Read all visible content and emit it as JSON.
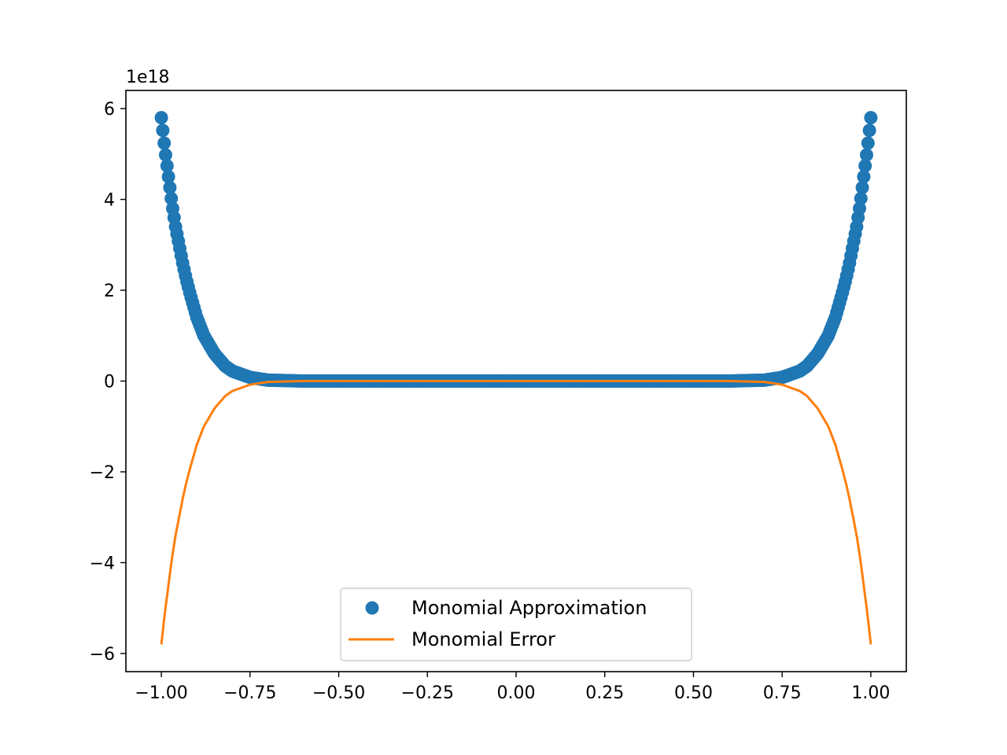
{
  "chart_data": {
    "type": "line",
    "title": "",
    "xlabel": "",
    "ylabel": "",
    "xlim": [
      -1.1,
      1.1
    ],
    "ylim": [
      -6.4,
      6.4
    ],
    "y_offset_label": "1e18",
    "x_ticks": [
      -1.0,
      -0.75,
      -0.5,
      -0.25,
      0.0,
      0.25,
      0.5,
      0.75,
      1.0
    ],
    "x_tick_labels": [
      "−1.00",
      "−0.75",
      "−0.50",
      "−0.25",
      "0.00",
      "0.25",
      "0.50",
      "0.75",
      "1.00"
    ],
    "y_ticks": [
      -6,
      -4,
      -2,
      0,
      2,
      4,
      6
    ],
    "y_tick_labels": [
      "−6",
      "−4",
      "−2",
      "0",
      "2",
      "4",
      "6"
    ],
    "grid": false,
    "legend_position": "lower-center",
    "series": [
      {
        "name": "Monomial Approximation",
        "style": "markers",
        "color": "#1f77b4",
        "x": [
          -1.0,
          -0.99,
          -0.98,
          -0.97,
          -0.96,
          -0.95,
          -0.94,
          -0.93,
          -0.92,
          -0.9,
          -0.88,
          -0.85,
          -0.82,
          -0.8,
          -0.75,
          -0.7,
          -0.6,
          -0.5,
          -0.4,
          -0.3,
          -0.2,
          -0.1,
          0.0,
          0.1,
          0.2,
          0.3,
          0.4,
          0.5,
          0.6,
          0.7,
          0.75,
          0.8,
          0.82,
          0.85,
          0.88,
          0.9,
          0.92,
          0.93,
          0.94,
          0.95,
          0.96,
          0.97,
          0.98,
          0.99,
          1.0
        ],
        "y": [
          5.8,
          5.1,
          4.5,
          3.9,
          3.4,
          3.0,
          2.6,
          2.25,
          1.95,
          1.4,
          1.0,
          0.6,
          0.33,
          0.22,
          0.08,
          0.02,
          0.0,
          0.0,
          0.0,
          0.0,
          0.0,
          0.0,
          0.0,
          0.0,
          0.0,
          0.0,
          0.0,
          0.0,
          0.0,
          0.02,
          0.08,
          0.22,
          0.33,
          0.6,
          1.0,
          1.4,
          1.95,
          2.25,
          2.6,
          3.0,
          3.4,
          3.9,
          4.5,
          5.1,
          5.8
        ]
      },
      {
        "name": "Monomial Error",
        "style": "line",
        "color": "#ff7f0e",
        "x": [
          -1.0,
          -0.99,
          -0.98,
          -0.97,
          -0.96,
          -0.95,
          -0.94,
          -0.93,
          -0.92,
          -0.9,
          -0.88,
          -0.85,
          -0.82,
          -0.8,
          -0.75,
          -0.7,
          -0.6,
          -0.5,
          -0.4,
          -0.3,
          -0.2,
          -0.1,
          0.0,
          0.1,
          0.2,
          0.3,
          0.4,
          0.5,
          0.6,
          0.7,
          0.75,
          0.8,
          0.82,
          0.85,
          0.88,
          0.9,
          0.92,
          0.93,
          0.94,
          0.95,
          0.96,
          0.97,
          0.98,
          0.99,
          1.0
        ],
        "y": [
          -5.8,
          -5.1,
          -4.5,
          -3.9,
          -3.4,
          -3.0,
          -2.6,
          -2.25,
          -1.95,
          -1.4,
          -1.0,
          -0.6,
          -0.33,
          -0.22,
          -0.08,
          -0.02,
          0.0,
          0.0,
          0.0,
          0.0,
          0.0,
          0.0,
          0.0,
          0.0,
          0.0,
          0.0,
          0.0,
          0.0,
          0.0,
          -0.02,
          -0.08,
          -0.22,
          -0.33,
          -0.6,
          -1.0,
          -1.4,
          -1.95,
          -2.25,
          -2.6,
          -3.0,
          -3.4,
          -3.9,
          -4.5,
          -5.1,
          -5.8
        ]
      }
    ]
  }
}
